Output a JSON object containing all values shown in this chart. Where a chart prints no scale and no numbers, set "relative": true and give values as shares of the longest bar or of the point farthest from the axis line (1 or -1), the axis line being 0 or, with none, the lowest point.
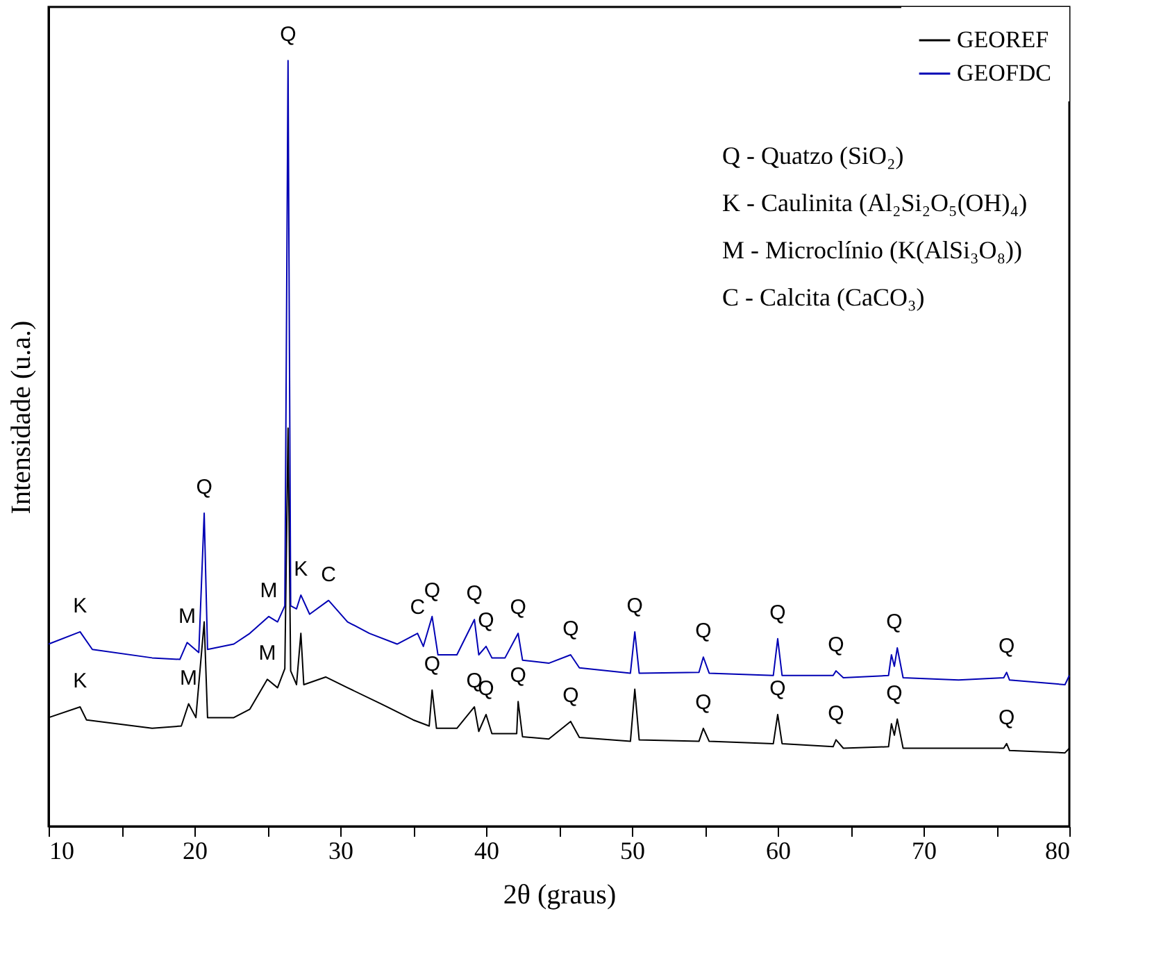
{
  "chart_data": {
    "type": "line",
    "relative": true,
    "xlabel": "2θ (graus)",
    "ylabel": "Intensidade (u.a.)",
    "xlim": [
      10,
      80
    ],
    "xticks": [
      10,
      {
        "value": 15,
        "label": null
      },
      20,
      {
        "value": 25,
        "label": null
      },
      30,
      {
        "value": 35,
        "label": null
      },
      40,
      {
        "value": 45,
        "label": null
      },
      50,
      {
        "value": 55,
        "label": null
      },
      60,
      {
        "value": 65,
        "label": null
      },
      70,
      {
        "value": 75,
        "label": null
      },
      80
    ],
    "legend": "top right",
    "grid": false,
    "line_style": "solid",
    "series": [
      {
        "name": "GEOREF",
        "color": "#000000",
        "x": [
          10,
          12.16,
          12.6,
          17.1,
          19.1,
          19.6,
          20.1,
          20.67,
          20.9,
          22.7,
          23.8,
          25.0,
          25.7,
          26.2,
          26.42,
          26.6,
          27.0,
          27.3,
          27.5,
          29.0,
          30.5,
          32.8,
          35.0,
          36.1,
          36.3,
          36.6,
          38.0,
          39.2,
          39.5,
          40.0,
          40.4,
          42.1,
          42.2,
          42.5,
          44.3,
          45.8,
          46.4,
          49.9,
          50.2,
          50.5,
          54.6,
          54.9,
          55.3,
          59.7,
          60.0,
          60.3,
          63.8,
          64.0,
          64.5,
          67.6,
          67.8,
          68.0,
          68.2,
          68.6,
          72.4,
          75.5,
          75.7,
          75.9,
          79.7,
          80
        ],
        "values": [
          0.142,
          0.156,
          0.139,
          0.128,
          0.131,
          0.16,
          0.142,
          0.267,
          0.142,
          0.142,
          0.153,
          0.192,
          0.181,
          0.206,
          0.52,
          0.203,
          0.185,
          0.252,
          0.185,
          0.195,
          0.181,
          0.16,
          0.139,
          0.131,
          0.178,
          0.128,
          0.128,
          0.156,
          0.124,
          0.146,
          0.121,
          0.121,
          0.163,
          0.117,
          0.114,
          0.137,
          0.116,
          0.111,
          0.179,
          0.113,
          0.111,
          0.128,
          0.111,
          0.108,
          0.146,
          0.108,
          0.104,
          0.113,
          0.102,
          0.104,
          0.134,
          0.119,
          0.14,
          0.102,
          0.102,
          0.102,
          0.108,
          0.099,
          0.096,
          0.102
        ]
      },
      {
        "name": "GEOFDC",
        "color": "#0000b4",
        "x": [
          10,
          12.16,
          13,
          17.1,
          19.0,
          19.5,
          20.3,
          20.67,
          20.9,
          22.7,
          23.8,
          25.1,
          25.7,
          26.2,
          26.42,
          26.6,
          27.0,
          27.3,
          27.9,
          29.2,
          30.5,
          32.0,
          33.9,
          35.3,
          35.7,
          36.3,
          36.7,
          38.0,
          39.2,
          39.5,
          40.0,
          40.4,
          41.3,
          42.2,
          42.5,
          44.3,
          45.8,
          46.4,
          49.9,
          50.2,
          50.5,
          54.6,
          54.9,
          55.3,
          59.7,
          60.0,
          60.3,
          63.8,
          64.0,
          64.5,
          67.6,
          67.8,
          68.0,
          68.2,
          68.6,
          72.4,
          75.5,
          75.7,
          75.9,
          79.7,
          80
        ],
        "values": [
          0.238,
          0.254,
          0.231,
          0.22,
          0.218,
          0.24,
          0.227,
          0.409,
          0.231,
          0.238,
          0.252,
          0.274,
          0.267,
          0.288,
          1.0,
          0.288,
          0.284,
          0.302,
          0.277,
          0.295,
          0.267,
          0.252,
          0.238,
          0.252,
          0.235,
          0.274,
          0.224,
          0.224,
          0.27,
          0.224,
          0.235,
          0.22,
          0.22,
          0.252,
          0.217,
          0.213,
          0.224,
          0.207,
          0.2,
          0.254,
          0.2,
          0.201,
          0.221,
          0.2,
          0.197,
          0.245,
          0.197,
          0.197,
          0.203,
          0.194,
          0.197,
          0.224,
          0.209,
          0.233,
          0.194,
          0.191,
          0.194,
          0.201,
          0.191,
          0.185,
          0.197
        ]
      }
    ],
    "annotations": [
      "Q - Quatzo (SiO₂)",
      "K - Caulinita (Al₂Si₂O₅(OH)₄)",
      "M - Microclínio (K(AlSi₃O₈))",
      "C - Calcita (CaCO₃)",
      {
        "text": "K",
        "x": 12.16,
        "y": 0.254
      },
      {
        "text": "M",
        "x": 19.5,
        "y": 0.24
      },
      {
        "text": "Q",
        "x": 20.67,
        "y": 0.409
      },
      {
        "text": "M",
        "x": 25.1,
        "y": 0.274
      },
      {
        "text": "Q",
        "x": 26.42,
        "y": 1.0
      },
      {
        "text": "K",
        "x": 27.3,
        "y": 0.302
      },
      {
        "text": "C",
        "x": 29.2,
        "y": 0.295
      },
      {
        "text": "C",
        "x": 35.3,
        "y": 0.252
      },
      {
        "text": "Q",
        "x": 36.3,
        "y": 0.274
      },
      {
        "text": "Q",
        "x": 39.2,
        "y": 0.27
      },
      {
        "text": "Q",
        "x": 40.0,
        "y": 0.235
      },
      {
        "text": "Q",
        "x": 42.2,
        "y": 0.252
      },
      {
        "text": "Q",
        "x": 45.8,
        "y": 0.224
      },
      {
        "text": "Q",
        "x": 50.2,
        "y": 0.254
      },
      {
        "text": "Q",
        "x": 54.9,
        "y": 0.221
      },
      {
        "text": "Q",
        "x": 60.0,
        "y": 0.245
      },
      {
        "text": "Q",
        "x": 64.0,
        "y": 0.203
      },
      {
        "text": "Q",
        "x": 68.0,
        "y": 0.233
      },
      {
        "text": "Q",
        "x": 75.7,
        "y": 0.201
      },
      {
        "text": "K",
        "x": 12.16,
        "y": 0.156
      },
      {
        "text": "M",
        "x": 19.6,
        "y": 0.16
      },
      {
        "text": "M",
        "x": 25.0,
        "y": 0.192
      },
      {
        "text": "Q",
        "x": 36.3,
        "y": 0.178
      },
      {
        "text": "Q",
        "x": 39.2,
        "y": 0.156
      },
      {
        "text": "Q",
        "x": 40.0,
        "y": 0.146
      },
      {
        "text": "Q",
        "x": 42.2,
        "y": 0.163
      },
      {
        "text": "Q",
        "x": 45.8,
        "y": 0.137
      },
      {
        "text": "Q",
        "x": 54.9,
        "y": 0.128
      },
      {
        "text": "Q",
        "x": 60.0,
        "y": 0.146
      },
      {
        "text": "Q",
        "x": 64.0,
        "y": 0.113
      },
      {
        "text": "Q",
        "x": 68.0,
        "y": 0.14
      },
      {
        "text": "Q",
        "x": 75.7,
        "y": 0.108
      }
    ]
  }
}
